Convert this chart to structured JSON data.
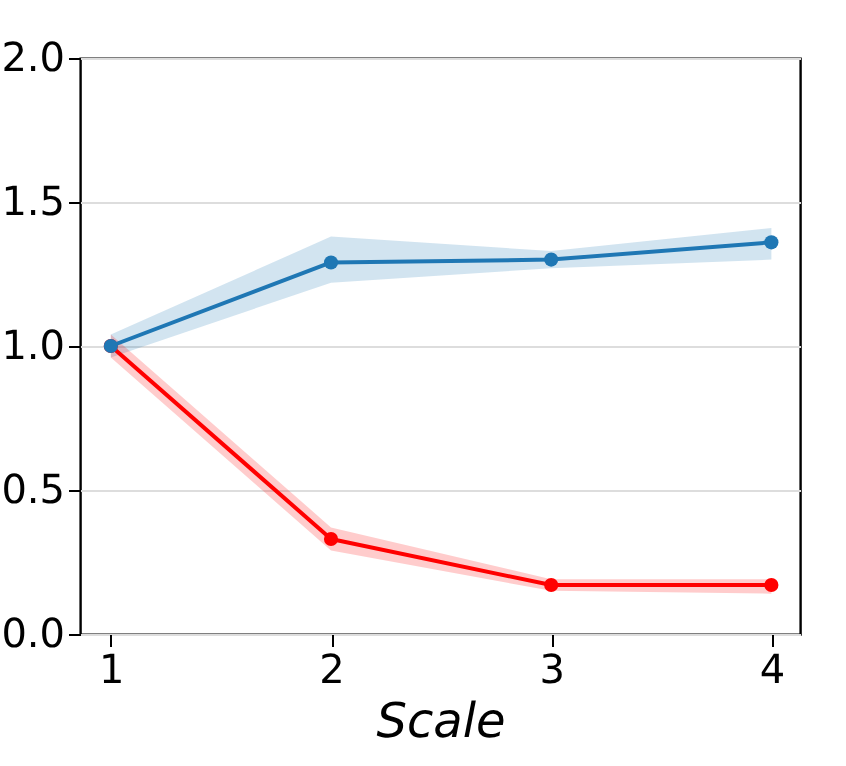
{
  "chart_data": {
    "type": "line",
    "xlabel": "Scale",
    "x": [
      1,
      2,
      3,
      4
    ],
    "series": [
      {
        "color": "#1f77b4",
        "values": [
          1.0,
          1.29,
          1.3,
          1.36
        ],
        "lower": [
          0.96,
          1.22,
          1.27,
          1.3
        ],
        "upper": [
          1.04,
          1.38,
          1.33,
          1.41
        ]
      },
      {
        "color": "#ff0000",
        "values": [
          1.0,
          0.33,
          0.17,
          0.17
        ],
        "lower": [
          0.96,
          0.29,
          0.15,
          0.14
        ],
        "upper": [
          1.04,
          0.37,
          0.19,
          0.19
        ]
      }
    ],
    "xlim": [
      0.86,
      4.13
    ],
    "xticks": [
      1,
      2,
      3,
      4
    ],
    "ylim": [
      0,
      2
    ],
    "yticks": [
      {
        "value": 0,
        "label": "0.0"
      },
      {
        "value": 0.5,
        "label": "0.5"
      },
      {
        "value": 1,
        "label": "1.0"
      },
      {
        "value": 1.5,
        "label": "1.5"
      },
      {
        "value": 2,
        "label": "2.0"
      }
    ],
    "grid": "y",
    "marker": "circle",
    "line_style": "solid",
    "legend": false
  }
}
